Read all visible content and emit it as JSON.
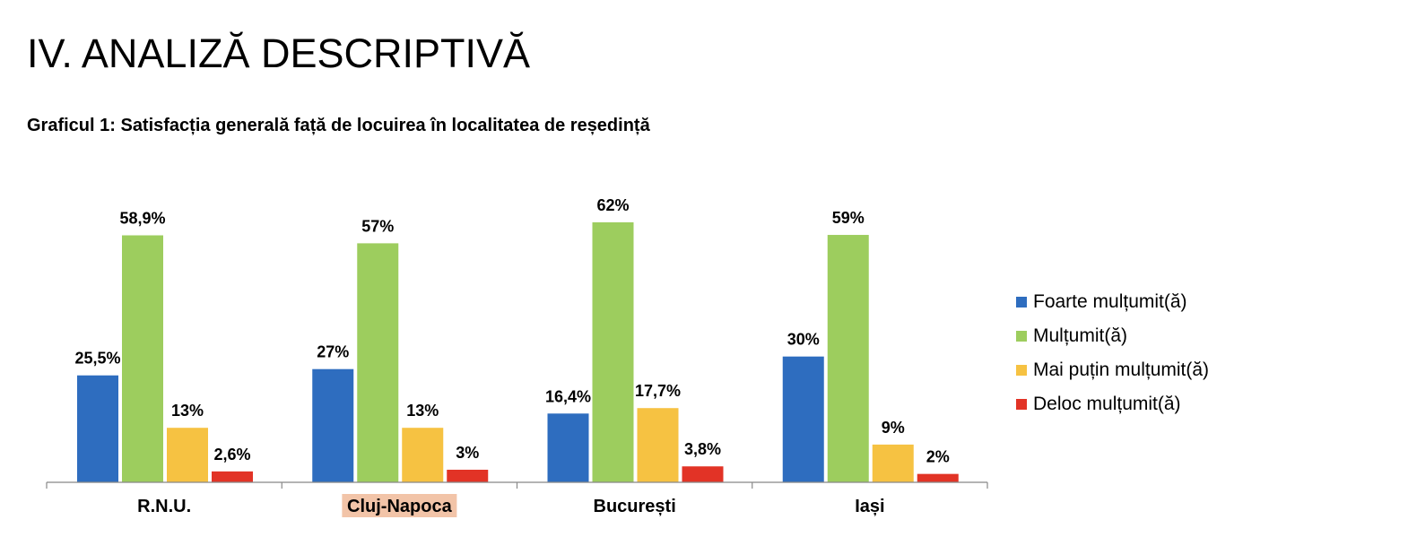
{
  "page_title": "IV. ANALIZĂ DESCRIPTIVĂ",
  "chart_data": {
    "type": "bar",
    "title": "Graficul 1: Satisfacția generală față de locuirea în localitatea de reședință",
    "xlabel": "",
    "ylabel": "",
    "ylim": [
      0,
      62
    ],
    "grid": false,
    "legend_position": "right",
    "categories": [
      "R.N.U.",
      "Cluj-Napoca",
      "București",
      "Iași"
    ],
    "highlighted_category": "Cluj-Napoca",
    "highlight_color": "#f2c4a8",
    "series": [
      {
        "name": "Foarte mulțumit(ă)",
        "color": "#2e6dbf",
        "values": [
          25.5,
          27,
          16.4,
          30
        ],
        "labels": [
          "25,5%",
          "27%",
          "16,4%",
          "30%"
        ]
      },
      {
        "name": "Mulțumit(ă)",
        "color": "#9dcd5e",
        "values": [
          58.9,
          57,
          62,
          59
        ],
        "labels": [
          "58,9%",
          "57%",
          "62%",
          "59%"
        ]
      },
      {
        "name": "Mai puțin mulțumit(ă)",
        "color": "#f6c242",
        "values": [
          13,
          13,
          17.7,
          9
        ],
        "labels": [
          "13%",
          "13%",
          "17,7%",
          "9%"
        ]
      },
      {
        "name": "Deloc mulțumit(ă)",
        "color": "#e23326",
        "values": [
          2.6,
          3,
          3.8,
          2
        ],
        "labels": [
          "2,6%",
          "3%",
          "3,8%",
          "2%"
        ]
      }
    ]
  }
}
